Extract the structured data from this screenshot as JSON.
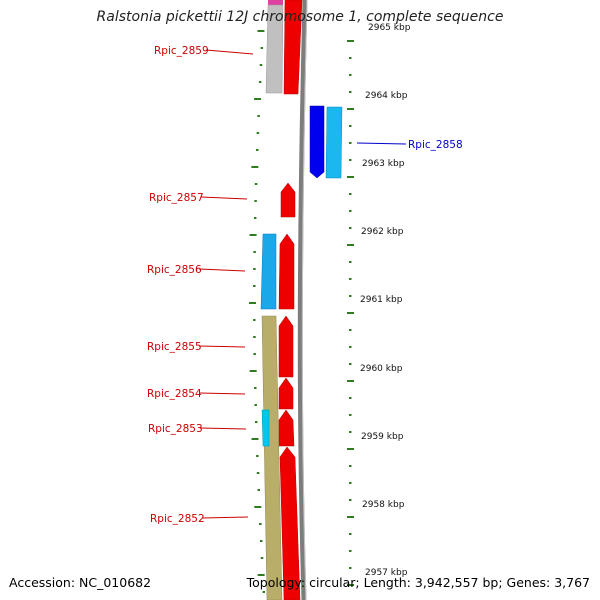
{
  "title": "Ralstonia pickettii 12J chromosome 1, complete sequence",
  "footer": {
    "accession": "Accession: NC_010682",
    "summary": "Topology: circular; Length: 3,942,557 bp; Genes: 3,767"
  },
  "colors": {
    "forward_label": "#cc0000",
    "reverse_label": "#0000cc",
    "tick": "#2f7d1f",
    "backbone": "#8a8a8a"
  },
  "scale": {
    "kbp_labels": [
      "2965 kbp",
      "2964 kbp",
      "2963 kbp",
      "2962 kbp",
      "2961 kbp",
      "2960 kbp",
      "2959 kbp",
      "2958 kbp",
      "2957 kbp"
    ]
  },
  "genes": [
    {
      "name": "Rpic_2859",
      "strand": "forward"
    },
    {
      "name": "Rpic_2858",
      "strand": "reverse"
    },
    {
      "name": "Rpic_2857",
      "strand": "forward"
    },
    {
      "name": "Rpic_2856",
      "strand": "forward"
    },
    {
      "name": "Rpic_2855",
      "strand": "forward"
    },
    {
      "name": "Rpic_2854",
      "strand": "forward"
    },
    {
      "name": "Rpic_2853",
      "strand": "forward"
    },
    {
      "name": "Rpic_2852",
      "strand": "forward"
    }
  ]
}
